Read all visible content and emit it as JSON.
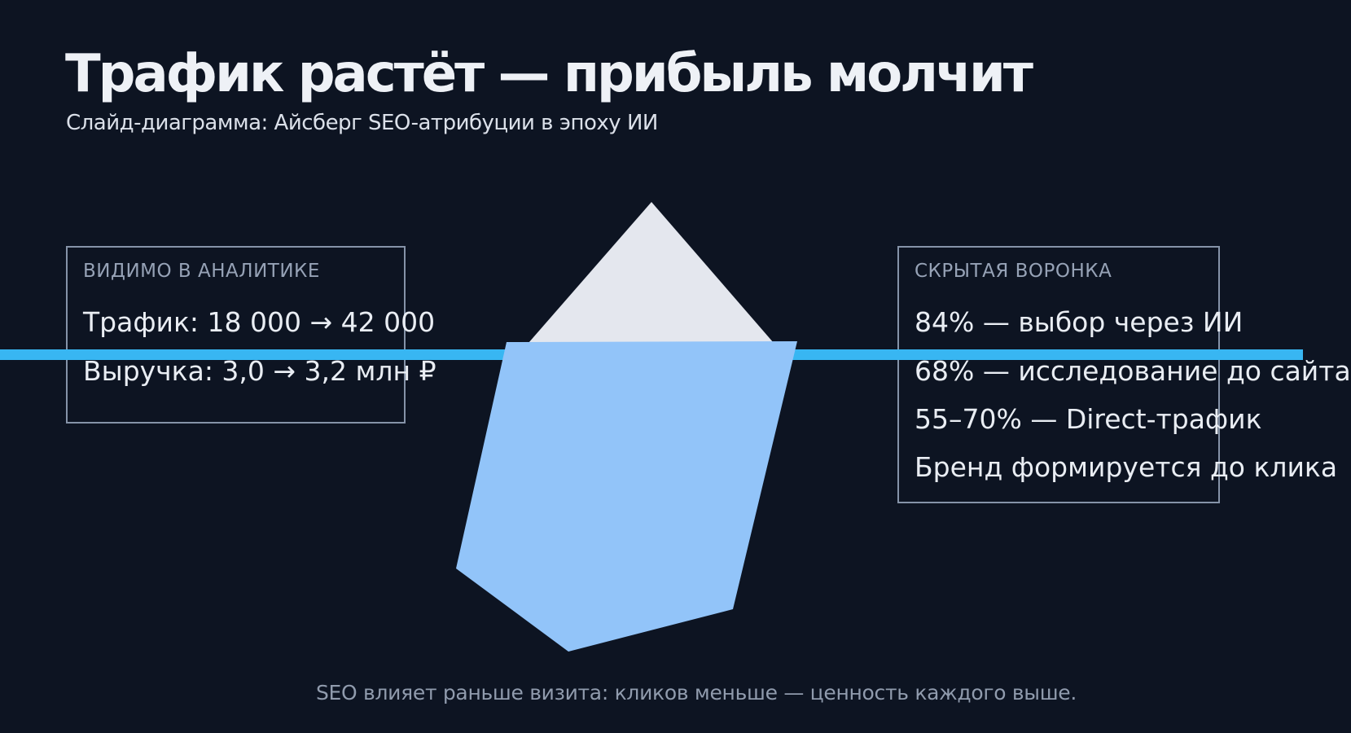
{
  "slide": {
    "title": "Трафик растёт — прибыль молчит",
    "subtitle": "Слайд-диаграмма: Айсберг SEO-атрибуции в эпоху ИИ",
    "caption": "SEO влияет раньше визита: кликов меньше — ценность каждого выше."
  },
  "visible_box": {
    "header": "ВИДИМО В АНАЛИТИКЕ",
    "lines": [
      "Трафик: 18 000 → 42 000",
      "Выручка: 3,0 → 3,2 млн ₽"
    ]
  },
  "hidden_box": {
    "header": "СКРЫТАЯ ВОРОНКА",
    "lines": [
      "84% — выбор через ИИ",
      "68% — исследование до сайта",
      "55–70% — Direct-трафик",
      "Бренд формируется до клика"
    ]
  },
  "iceberg": {
    "tip_points": "800,248 649,421 950,421",
    "underwater_points": "622,420 979,419 900,748 698,800 560,698"
  },
  "colors": {
    "background": "#0d1422",
    "waterline": "#38b6f2",
    "iceberg_tip": "#e4e7ee",
    "iceberg_underwater": "#92c4f9",
    "box_border": "#8593a8",
    "box_header_text": "#96a2b6",
    "box_body_text": "#e9edf3",
    "title_text": "#eef1f6",
    "caption_text": "#909bad"
  }
}
